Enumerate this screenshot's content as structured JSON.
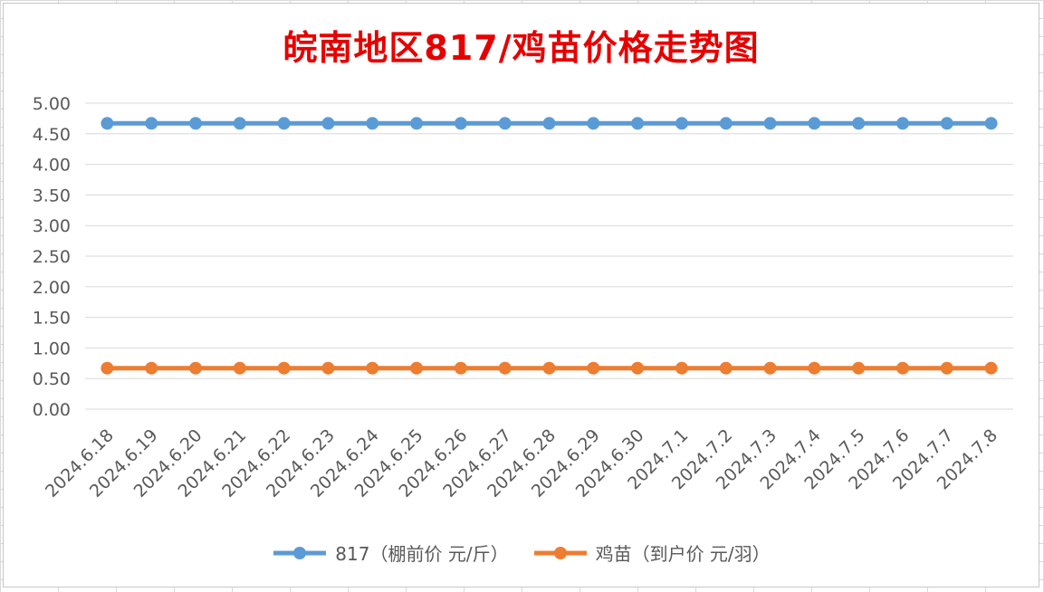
{
  "chart_data": {
    "type": "line",
    "title": "皖南地区817/鸡苗价格走势图",
    "xlabel": "",
    "ylabel": "",
    "ylim": [
      0,
      5
    ],
    "y_ticks": [
      "0.00",
      "0.50",
      "1.00",
      "1.50",
      "2.00",
      "2.50",
      "3.00",
      "3.50",
      "4.00",
      "4.50",
      "5.00"
    ],
    "grid": true,
    "legend_position": "bottom",
    "categories": [
      "2024.6.18",
      "2024.6.19",
      "2024.6.20",
      "2024.6.21",
      "2024.6.22",
      "2024.6.23",
      "2024.6.24",
      "2024.6.25",
      "2024.6.26",
      "2024.6.27",
      "2024.6.28",
      "2024.6.29",
      "2024.6.30",
      "2024.7.1",
      "2024.7.2",
      "2024.7.3",
      "2024.7.4",
      "2024.7.5",
      "2024.7.6",
      "2024.7.7",
      "2024.7.8"
    ],
    "series": [
      {
        "name": "817（棚前价 元/斤）",
        "color": "#5b9bd5",
        "values": [
          4.67,
          4.67,
          4.67,
          4.67,
          4.67,
          4.67,
          4.67,
          4.67,
          4.67,
          4.67,
          4.67,
          4.67,
          4.67,
          4.67,
          4.67,
          4.67,
          4.67,
          4.67,
          4.67,
          4.67,
          4.67
        ]
      },
      {
        "name": "鸡苗（到户价 元/羽）",
        "color": "#ed7d31",
        "values": [
          0.67,
          0.67,
          0.67,
          0.67,
          0.67,
          0.67,
          0.67,
          0.67,
          0.67,
          0.67,
          0.67,
          0.67,
          0.67,
          0.67,
          0.67,
          0.67,
          0.67,
          0.67,
          0.67,
          0.67,
          0.67
        ]
      }
    ]
  }
}
